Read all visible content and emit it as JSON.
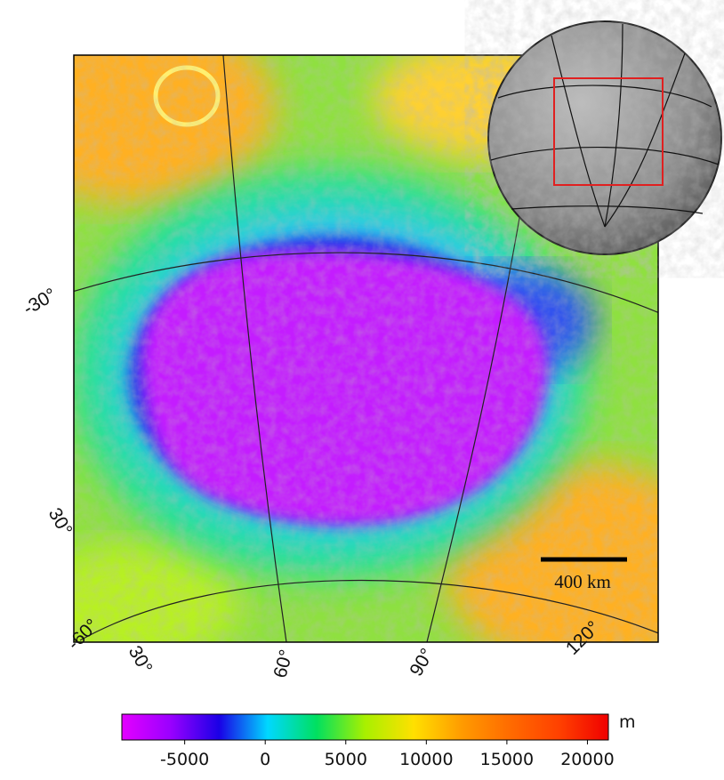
{
  "map": {
    "graticule_labels": [
      "-30°",
      "30°",
      "-60°",
      "30°",
      "60°",
      "90°",
      "120°"
    ],
    "scale_bar": {
      "label": "400 km"
    }
  },
  "colorbar": {
    "lim": [
      -8900,
      21300
    ],
    "ticks": [
      -5000,
      0,
      5000,
      10000,
      15000,
      20000
    ],
    "unit": "m",
    "colors": [
      "#e400ff",
      "#9a00ff",
      "#1a00e6",
      "#00d8ff",
      "#00e060",
      "#a8f000",
      "#ffe000",
      "#ff9a00",
      "#ff6a00",
      "#ff4000",
      "#f00000"
    ]
  }
}
